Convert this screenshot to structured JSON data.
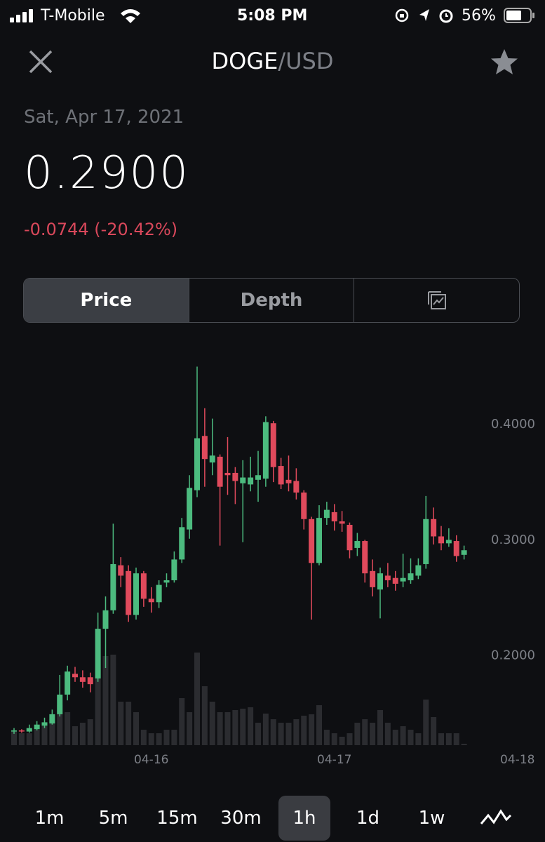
{
  "status_bar": {
    "carrier": "T-Mobile",
    "time": "5:08 PM",
    "battery": "56%"
  },
  "header": {
    "base": "DOGE",
    "quote": "/USD"
  },
  "summary": {
    "date": "Sat, Apr 17, 2021",
    "price": "0.2900",
    "change": "-0.0744 (-20.42%)"
  },
  "tabs": [
    "Price",
    "Depth"
  ],
  "intervals": [
    "1m",
    "5m",
    "15m",
    "30m",
    "1h",
    "1d",
    "1w"
  ],
  "chart_data": {
    "type": "candlestick",
    "categories": [
      null,
      null,
      null,
      null,
      null,
      null,
      null,
      null,
      null,
      null,
      null,
      null,
      null,
      null,
      null,
      null,
      null,
      null,
      "04-16",
      null,
      null,
      null,
      null,
      null,
      null,
      null,
      null,
      null,
      null,
      null,
      null,
      null,
      null,
      null,
      null,
      null,
      null,
      null,
      null,
      null,
      null,
      null,
      "04-17",
      null,
      null,
      null,
      null,
      null,
      null,
      null,
      null,
      null,
      null,
      null,
      null,
      null,
      null,
      null,
      null,
      null,
      null,
      null,
      null,
      null,
      null,
      null,
      "04-18"
    ],
    "open": [
      0.133,
      0.134,
      0.133,
      0.135,
      0.138,
      0.14,
      0.148,
      0.165,
      0.183,
      0.18,
      0.18,
      0.179,
      0.222,
      0.238,
      0.277,
      0.272,
      0.234,
      0.27,
      0.248,
      0.245,
      0.262,
      0.264,
      0.282,
      0.308,
      0.342,
      0.389,
      0.366,
      0.371,
      0.357,
      0.357,
      0.348,
      0.347,
      0.351,
      0.352,
      0.4,
      0.363,
      0.351,
      0.35,
      0.34,
      0.317,
      0.279,
      0.318,
      0.323,
      0.315,
      0.312,
      0.292,
      0.298,
      0.272,
      0.256,
      0.268,
      0.266,
      0.263,
      0.264,
      0.268,
      0.278,
      0.317,
      0.302,
      0.296,
      0.298,
      0.286,
      null,
      null,
      null,
      null,
      null,
      null,
      null
    ],
    "high": [
      0.136,
      0.135,
      0.139,
      0.142,
      0.145,
      0.152,
      0.182,
      0.19,
      0.189,
      0.186,
      0.184,
      0.236,
      0.25,
      0.313,
      0.284,
      0.277,
      0.275,
      0.272,
      0.258,
      0.264,
      0.27,
      0.289,
      0.318,
      0.355,
      0.449,
      0.413,
      0.404,
      0.373,
      0.388,
      0.362,
      0.368,
      0.371,
      0.376,
      0.406,
      0.402,
      0.37,
      0.372,
      0.361,
      0.342,
      0.319,
      0.329,
      0.332,
      0.33,
      0.324,
      0.314,
      0.305,
      0.299,
      0.282,
      0.275,
      0.279,
      0.272,
      0.287,
      0.283,
      0.283,
      0.337,
      0.327,
      0.311,
      0.309,
      0.303,
      0.294,
      null,
      null,
      null,
      null,
      null,
      null,
      null
    ],
    "low": [
      0.131,
      0.132,
      0.132,
      0.134,
      0.136,
      0.139,
      0.146,
      0.16,
      0.176,
      0.171,
      0.167,
      0.176,
      0.188,
      0.235,
      0.258,
      0.228,
      0.23,
      0.241,
      0.236,
      0.24,
      0.258,
      0.262,
      0.279,
      0.3,
      0.336,
      0.345,
      0.355,
      0.294,
      0.338,
      0.33,
      0.297,
      0.341,
      0.332,
      0.345,
      0.349,
      0.343,
      0.341,
      0.334,
      0.308,
      0.23,
      0.277,
      0.312,
      0.307,
      0.306,
      0.283,
      0.285,
      0.262,
      0.25,
      0.231,
      0.258,
      0.255,
      0.258,
      0.261,
      0.265,
      0.274,
      0.295,
      0.29,
      0.293,
      0.28,
      0.282,
      null,
      null,
      null,
      null,
      null,
      null,
      null
    ],
    "close": [
      0.134,
      0.133,
      0.136,
      0.139,
      0.141,
      0.148,
      0.165,
      0.185,
      0.18,
      0.176,
      0.174,
      0.222,
      0.238,
      0.278,
      0.268,
      0.234,
      0.27,
      0.248,
      0.245,
      0.26,
      0.264,
      0.282,
      0.31,
      0.344,
      0.387,
      0.369,
      0.372,
      0.345,
      0.355,
      0.35,
      0.353,
      0.353,
      0.355,
      0.401,
      0.362,
      0.347,
      0.348,
      0.34,
      0.317,
      0.279,
      0.318,
      0.325,
      0.315,
      0.313,
      0.29,
      0.298,
      0.27,
      0.258,
      0.27,
      0.264,
      0.261,
      0.266,
      0.27,
      0.277,
      0.317,
      0.302,
      0.296,
      0.299,
      0.285,
      0.29,
      null,
      null,
      null,
      null,
      null,
      null,
      null
    ],
    "volume": [
      20,
      17,
      17,
      22,
      27,
      37,
      57,
      47,
      27,
      32,
      37,
      107,
      127,
      129,
      62,
      62,
      47,
      22,
      17,
      17,
      22,
      22,
      67,
      47,
      132,
      84,
      62,
      47,
      47,
      50,
      52,
      54,
      32,
      45,
      37,
      32,
      32,
      37,
      42,
      44,
      57,
      22,
      17,
      12,
      17,
      32,
      37,
      32,
      50,
      32,
      22,
      27,
      22,
      17,
      65,
      40,
      17,
      17,
      17,
      2,
      null,
      null,
      null,
      null,
      null,
      null,
      null
    ],
    "up_color": "#4cbb7f",
    "down_color": "#e04a5c",
    "volume_color": "#2b2c30",
    "ylim": [
      0.1212,
      0.4627
    ],
    "yticks": [
      {
        "value": 0.2,
        "label": "0.2000"
      },
      {
        "value": 0.3,
        "label": "0.3000"
      },
      {
        "value": 0.4,
        "label": "0.4000"
      }
    ],
    "vlim": [
      0,
      140
    ]
  }
}
